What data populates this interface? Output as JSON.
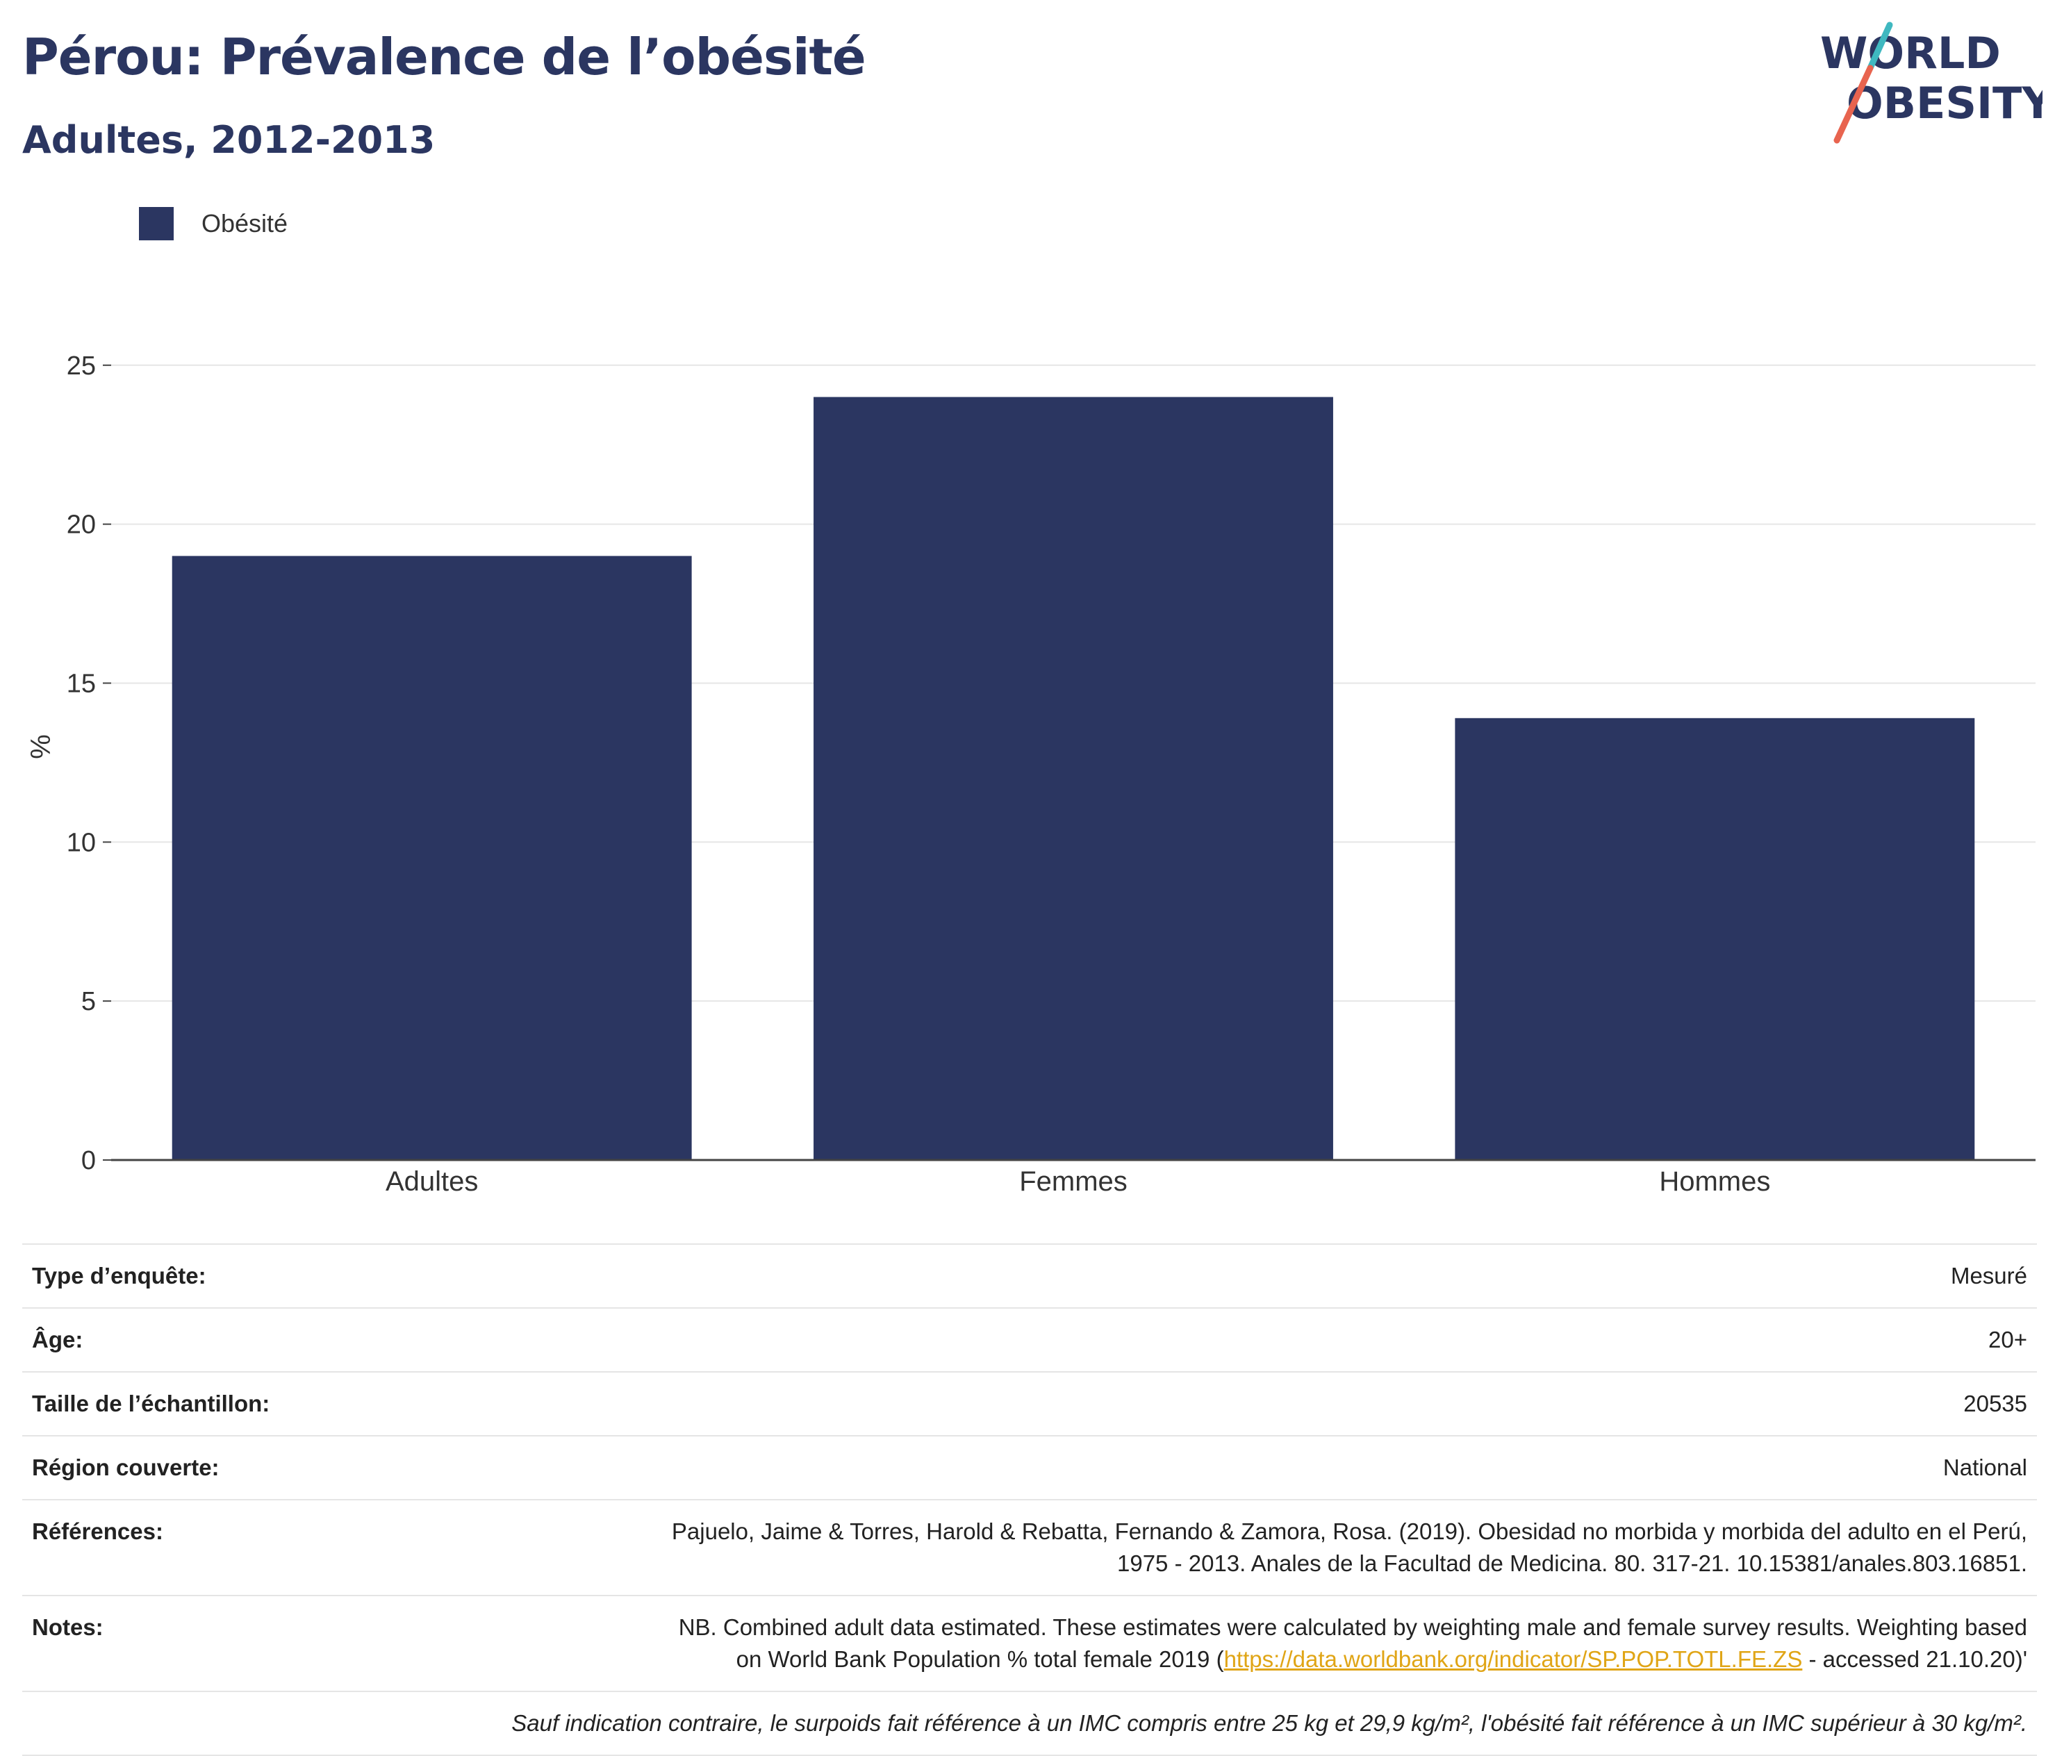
{
  "header": {
    "title": "Pérou: Prévalence de l’obésité",
    "subtitle": "Adultes, 2012-2013"
  },
  "logo": {
    "line1": "WORLD",
    "line2": "OBESITY",
    "colors": {
      "text": "#2b3661",
      "slash_teal": "#3fb8c0",
      "slash_red": "#e8644f"
    }
  },
  "colors": {
    "bar": "#2b3661",
    "grid": "#e6e6e6",
    "axis": "#444444",
    "link": "#e0a516"
  },
  "chart_data": {
    "type": "bar",
    "title": "Pérou: Prévalence de l’obésité",
    "subtitle": "Adultes, 2012-2013",
    "categories": [
      "Adultes",
      "Femmes",
      "Hommes"
    ],
    "series": [
      {
        "name": "Obésité",
        "values": [
          19.0,
          24.0,
          13.9
        ],
        "color": "#2b3661"
      }
    ],
    "xlabel": "",
    "ylabel": "%",
    "ylim": [
      0,
      26
    ],
    "yticks": [
      0,
      5,
      10,
      15,
      20,
      25
    ],
    "grid": true,
    "legend_position": "top-left"
  },
  "meta": {
    "rows": [
      {
        "label": "Type d’enquête:",
        "value": "Mesuré"
      },
      {
        "label": "Âge:",
        "value": "20+"
      },
      {
        "label": "Taille de l’échantillon:",
        "value": "20535"
      },
      {
        "label": "Région couverte:",
        "value": "National"
      },
      {
        "label": "Références:",
        "line1": "Pajuelo, Jaime & Torres, Harold & Rebatta, Fernando & Zamora, Rosa. (2019). Obesidad no morbida y morbida del adulto en el Perú,",
        "line2": "1975 - 2013. Anales de la Facultad de Medicina. 80. 317-21. 10.15381/anales.803.16851."
      }
    ],
    "notes": {
      "label": "Notes:",
      "line1": "NB. Combined adult data estimated. These estimates were calculated by weighting male and female survey results. Weighting based",
      "line2_pre": "on World Bank Population % total female 2019 (",
      "line2_link": "https://data.worldbank.org/indicator/SP.POP.TOTL.FE.ZS",
      "line2_post": " - accessed 21.10.20)'"
    },
    "footnote": "Sauf indication contraire, le surpoids fait référence à un IMC compris entre 25 kg et 29,9 kg/m², l'obésité fait référence à un IMC supérieur à 30 kg/m²."
  }
}
